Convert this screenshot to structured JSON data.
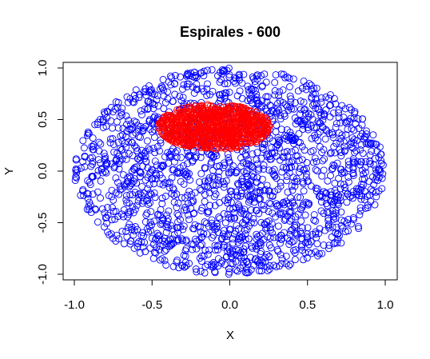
{
  "chart_data": {
    "type": "scatter",
    "title": "Espirales - 600",
    "xlabel": "X",
    "ylabel": "Y",
    "xlim": [
      -1.0,
      1.0
    ],
    "ylim": [
      -1.0,
      1.0
    ],
    "xticks": [
      -1.0,
      -0.5,
      0.0,
      0.5,
      1.0
    ],
    "yticks": [
      -1.0,
      -0.5,
      0.0,
      0.5,
      1.0
    ],
    "xtick_labels": [
      "-1.0",
      "-0.5",
      "0.0",
      "0.5",
      "1.0"
    ],
    "ytick_labels": [
      "-1.0",
      "-0.5",
      "0.0",
      "0.5",
      "1.0"
    ],
    "grid": false,
    "series": [
      {
        "color": "#0000ff",
        "marker": "open-circle",
        "region": {
          "shape": "disk",
          "center": [
            0.0,
            0.0
          ],
          "radius_x": 1.0,
          "radius_y": 1.0
        }
      },
      {
        "color": "#ff0000",
        "marker": "open-circle",
        "region": {
          "shape": "ellipse",
          "center": [
            -0.1,
            0.43
          ],
          "radius_x": 0.36,
          "radius_y": 0.22
        }
      }
    ]
  }
}
